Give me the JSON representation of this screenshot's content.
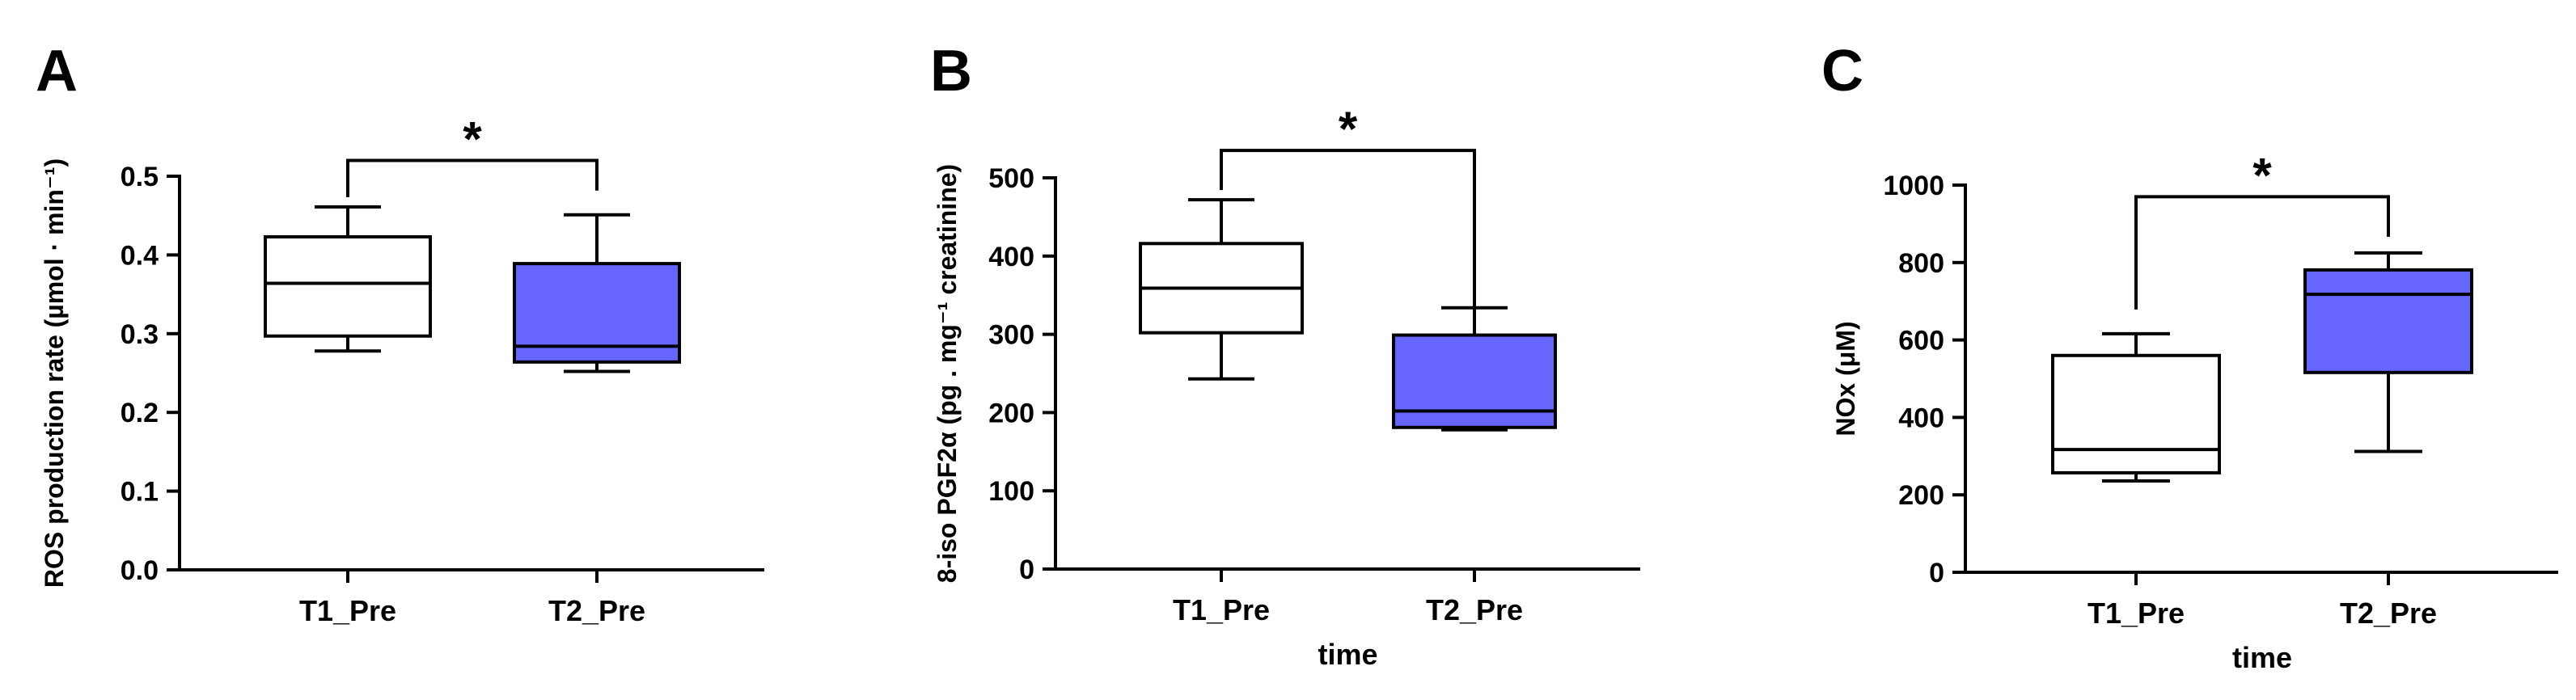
{
  "chart_data": [
    {
      "type": "box",
      "panel": "A",
      "ylabel": "ROS production rate (µmol · min⁻¹)",
      "xlabel": "",
      "ylim": [
        0,
        0.5
      ],
      "yticks": [
        0.0,
        0.1,
        0.2,
        0.3,
        0.4,
        0.5
      ],
      "ytick_labels": [
        "0.0",
        "0.1",
        "0.2",
        "0.3",
        "0.4",
        "0.5"
      ],
      "categories": [
        "T1_Pre",
        "T2_Pre"
      ],
      "boxes": [
        {
          "min": 0.278,
          "q1": 0.297,
          "median": 0.364,
          "q3": 0.423,
          "max": 0.461,
          "fill": "#ffffff"
        },
        {
          "min": 0.252,
          "q1": 0.264,
          "median": 0.284,
          "q3": 0.389,
          "max": 0.451,
          "fill": "#6666ff"
        }
      ],
      "significance": {
        "label": "*",
        "bracket_y": 0.52
      }
    },
    {
      "type": "box",
      "panel": "B",
      "ylabel": "8-iso PGF2α (pg . mg⁻¹ creatinine)",
      "xlabel": "time",
      "ylim": [
        0,
        500
      ],
      "yticks": [
        0,
        100,
        200,
        300,
        400,
        500
      ],
      "ytick_labels": [
        "0",
        "100",
        "200",
        "300",
        "400",
        "500"
      ],
      "categories": [
        "T1_Pre",
        "T2_Pre"
      ],
      "boxes": [
        {
          "min": 243,
          "q1": 302,
          "median": 359,
          "q3": 416,
          "max": 472,
          "fill": "#ffffff"
        },
        {
          "min": 178,
          "q1": 181,
          "median": 202,
          "q3": 299,
          "max": 334,
          "fill": "#6666ff"
        }
      ],
      "significance": {
        "label": "*",
        "bracket_y": 535
      }
    },
    {
      "type": "box",
      "panel": "C",
      "ylabel": "NOx (μM)",
      "xlabel": "time",
      "ylim": [
        0,
        1000
      ],
      "yticks": [
        0,
        200,
        400,
        600,
        800,
        1000
      ],
      "ytick_labels": [
        "0",
        "200",
        "400",
        "600",
        "800",
        "1000"
      ],
      "categories": [
        "T1_Pre",
        "T2_Pre"
      ],
      "boxes": [
        {
          "min": 236,
          "q1": 257,
          "median": 317,
          "q3": 560,
          "max": 616,
          "fill": "#ffffff"
        },
        {
          "min": 312,
          "q1": 516,
          "median": 718,
          "q3": 781,
          "max": 825,
          "fill": "#6666ff"
        }
      ],
      "significance": {
        "label": "*",
        "bracket_y": 970
      }
    }
  ]
}
